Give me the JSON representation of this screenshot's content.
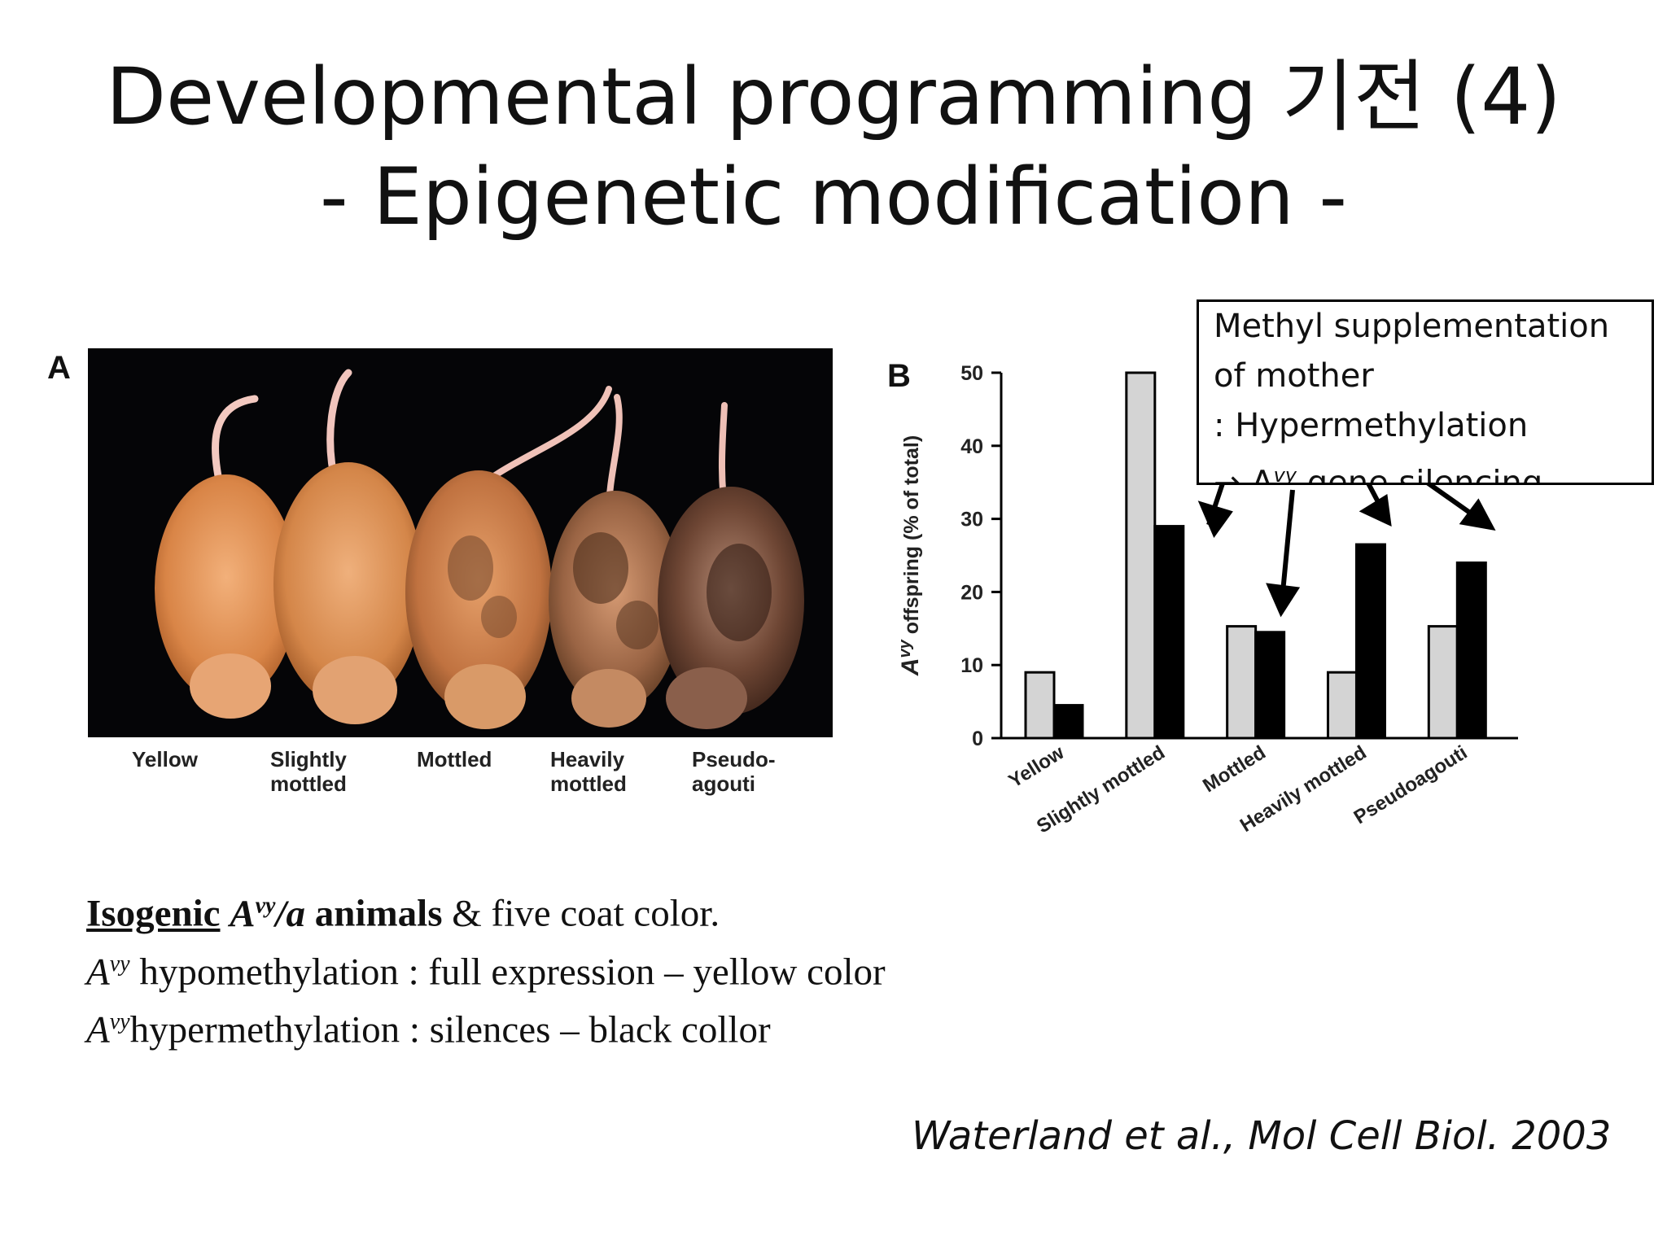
{
  "slide": {
    "title_line1": "Developmental programming 기전 (4)",
    "title_line2": "- Epigenetic modification -"
  },
  "panel_a": {
    "letter": "A",
    "coat_labels": [
      {
        "line1": "Yellow",
        "line2": ""
      },
      {
        "line1": "Slightly",
        "line2": "mottled"
      },
      {
        "line1": "Mottled",
        "line2": ""
      },
      {
        "line1": "Heavily",
        "line2": "mottled"
      },
      {
        "line1": "Pseudo-",
        "line2": "agouti"
      }
    ]
  },
  "panel_b": {
    "letter": "B"
  },
  "callout": {
    "line1": "Methyl supplementation",
    "line2": "of mother",
    "line3": ": Hypermethylation",
    "line4_prefix": "→ A",
    "line4_sup": "vy",
    "line4_suffix": " gene silencing"
  },
  "caption": {
    "l1_underlined": "Isogenic",
    "l1_italic": "A",
    "l1_italic_sup": "vy",
    "l1_italic_tail": "/a",
    "l1_bold": " animals",
    "l1_rest": " & five coat color.",
    "l2_italic": "A",
    "l2_sup": "vy",
    "l2_rest": " hypomethylation : full expression – yellow color",
    "l3_italic": "A",
    "l3_sup": "vy",
    "l3_rest": "hypermethylation : silences – black collor"
  },
  "citation": "Waterland et al., Mol Cell Biol. 2003",
  "chart_data": {
    "type": "bar",
    "categories": [
      "Yellow",
      "Slightly mottled",
      "Mottled",
      "Heavily mottled",
      "Pseudoagouti"
    ],
    "series": [
      {
        "values": [
          9,
          50,
          15.3,
          9,
          15.3
        ],
        "color": "#d4d4d4"
      },
      {
        "values": [
          4.5,
          29,
          14.5,
          26.5,
          24
        ],
        "color": "#000000"
      }
    ],
    "ylabel_prefix": "A",
    "ylabel_sup": "vy",
    "ylabel_rest": " offspring (% of total)",
    "ylim": [
      0,
      50
    ],
    "yticks": [
      0,
      10,
      20,
      30,
      40,
      50
    ],
    "grid": false,
    "legend": "none"
  }
}
